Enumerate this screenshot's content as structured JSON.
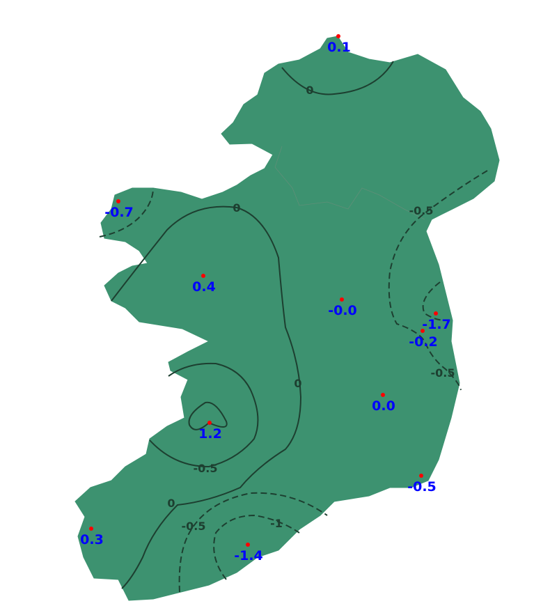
{
  "map": {
    "colors": {
      "land": "#3d9270",
      "contour": "#1d3f30",
      "station_dot": "#ff0000",
      "station_label": "#0000ff"
    },
    "stations": [
      {
        "value": "0.1"
      },
      {
        "value": "-0.7"
      },
      {
        "value": "0.4"
      },
      {
        "value": "-0.0"
      },
      {
        "value": "-1.7"
      },
      {
        "value": "-0.2"
      },
      {
        "value": "0.0"
      },
      {
        "value": "1.2"
      },
      {
        "value": "-0.5"
      },
      {
        "value": "0.3"
      },
      {
        "value": "-1.4"
      }
    ],
    "contour_labels": [
      "0",
      "0",
      "-0.5",
      "0",
      "-0.5",
      "-0.5",
      "0",
      "-0.5",
      "-1"
    ]
  }
}
